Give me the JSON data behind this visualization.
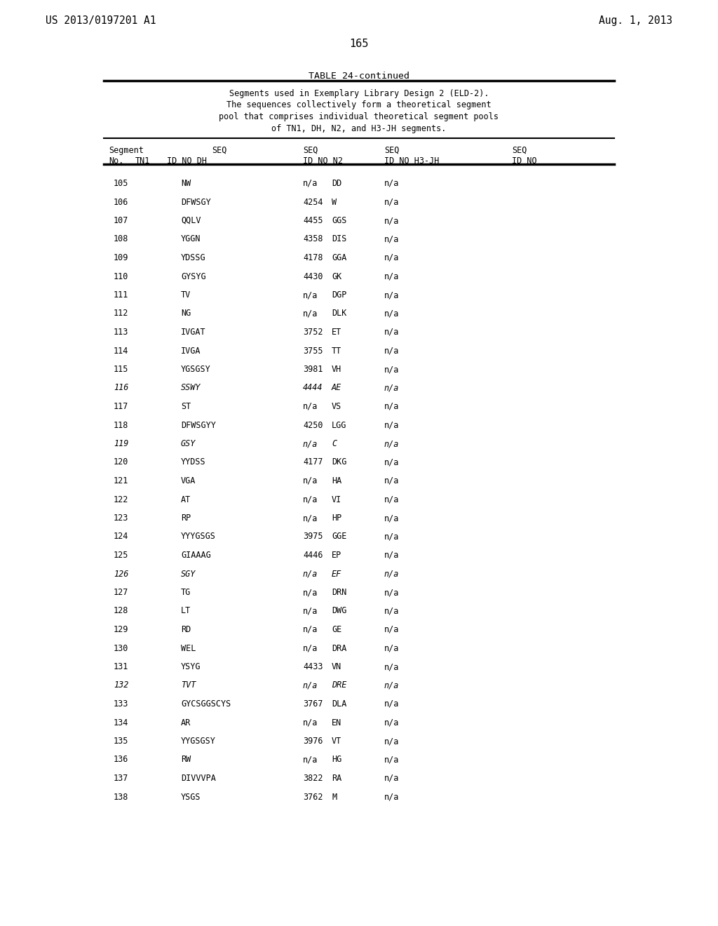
{
  "patent_left": "US 2013/0197201 A1",
  "patent_right": "Aug. 1, 2013",
  "page_number": "165",
  "table_title": "TABLE 24-continued",
  "table_description": [
    "Segments used in Exemplary Library Design 2 (ELD-2).",
    "The sequences collectively form a theoretical segment",
    "pool that comprises individual theoretical segment pools",
    "of TN1, DH, N2, and H3-JH segments."
  ],
  "rows": [
    [
      "105",
      "NW",
      "n/a",
      "DD",
      "n/a",
      ""
    ],
    [
      "106",
      "DFWSGY",
      "4254",
      "W",
      "n/a",
      ""
    ],
    [
      "107",
      "QQLV",
      "4455",
      "GGS",
      "n/a",
      ""
    ],
    [
      "108",
      "YGGN",
      "4358",
      "DIS",
      "n/a",
      ""
    ],
    [
      "109",
      "YDSSG",
      "4178",
      "GGA",
      "n/a",
      ""
    ],
    [
      "110",
      "GYSYG",
      "4430",
      "GK",
      "n/a",
      ""
    ],
    [
      "111",
      "TV",
      "n/a",
      "DGP",
      "n/a",
      ""
    ],
    [
      "112",
      "NG",
      "n/a",
      "DLK",
      "n/a",
      ""
    ],
    [
      "113",
      "IVGAT",
      "3752",
      "ET",
      "n/a",
      ""
    ],
    [
      "114",
      "IVGA",
      "3755",
      "TT",
      "n/a",
      ""
    ],
    [
      "115",
      "YGSGSY",
      "3981",
      "VH",
      "n/a",
      ""
    ],
    [
      "116",
      "SSWY",
      "4444",
      "AE",
      "n/a",
      ""
    ],
    [
      "117",
      "ST",
      "n/a",
      "VS",
      "n/a",
      ""
    ],
    [
      "118",
      "DFWSGYY",
      "4250",
      "LGG",
      "n/a",
      ""
    ],
    [
      "119",
      "GSY",
      "n/a",
      "C",
      "n/a",
      ""
    ],
    [
      "120",
      "YYDSS",
      "4177",
      "DKG",
      "n/a",
      ""
    ],
    [
      "121",
      "VGA",
      "n/a",
      "HA",
      "n/a",
      ""
    ],
    [
      "122",
      "AT",
      "n/a",
      "VI",
      "n/a",
      ""
    ],
    [
      "123",
      "RP",
      "n/a",
      "HP",
      "n/a",
      ""
    ],
    [
      "124",
      "YYYGSGS",
      "3975",
      "GGE",
      "n/a",
      ""
    ],
    [
      "125",
      "GIAAAG",
      "4446",
      "EP",
      "n/a",
      ""
    ],
    [
      "126",
      "SGY",
      "n/a",
      "EF",
      "n/a",
      ""
    ],
    [
      "127",
      "TG",
      "n/a",
      "DRN",
      "n/a",
      ""
    ],
    [
      "128",
      "LT",
      "n/a",
      "DWG",
      "n/a",
      ""
    ],
    [
      "129",
      "RD",
      "n/a",
      "GE",
      "n/a",
      ""
    ],
    [
      "130",
      "WEL",
      "n/a",
      "DRA",
      "n/a",
      ""
    ],
    [
      "131",
      "YSYG",
      "4433",
      "VN",
      "n/a",
      ""
    ],
    [
      "132",
      "TVT",
      "n/a",
      "DRE",
      "n/a",
      ""
    ],
    [
      "133",
      "GYCSGGSCYS",
      "3767",
      "DLA",
      "n/a",
      ""
    ],
    [
      "134",
      "AR",
      "n/a",
      "EN",
      "n/a",
      ""
    ],
    [
      "135",
      "YYGSGSY",
      "3976",
      "VT",
      "n/a",
      ""
    ],
    [
      "136",
      "RW",
      "n/a",
      "HG",
      "n/a",
      ""
    ],
    [
      "137",
      "DIVVVPA",
      "3822",
      "RA",
      "n/a",
      ""
    ],
    [
      "138",
      "YSGS",
      "3762",
      "M",
      "n/a",
      ""
    ]
  ],
  "italic_segs": [
    "116",
    "119",
    "126",
    "132"
  ],
  "bg_color": "#ffffff",
  "text_color": "#000000",
  "line_color": "#000000"
}
